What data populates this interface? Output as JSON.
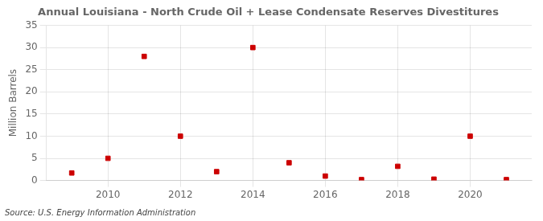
{
  "chart_data": {
    "type": "scatter",
    "title": "Annual Louisiana - North Crude Oil + Lease Condensate Reserves Divestitures",
    "ylabel": "Million Barrels",
    "annotation": "Source: U.S. Energy Information Administration",
    "x": [
      2009,
      2010,
      2011,
      2012,
      2013,
      2014,
      2015,
      2016,
      2017,
      2018,
      2019,
      2020,
      2021
    ],
    "values": [
      1.7,
      5.0,
      28.0,
      10.0,
      2.0,
      30.0,
      4.0,
      1.0,
      0.2,
      3.2,
      0.3,
      10.0,
      0.2
    ],
    "color": "#cc0000",
    "marker": "square",
    "xlim": [
      2008.3,
      2021.7
    ],
    "xticks": [
      2010,
      2012,
      2014,
      2016,
      2018,
      2020
    ],
    "ylim": [
      0,
      35
    ],
    "yticks": [
      0,
      5,
      10,
      15,
      20,
      25,
      30,
      35
    ],
    "grid": true
  }
}
